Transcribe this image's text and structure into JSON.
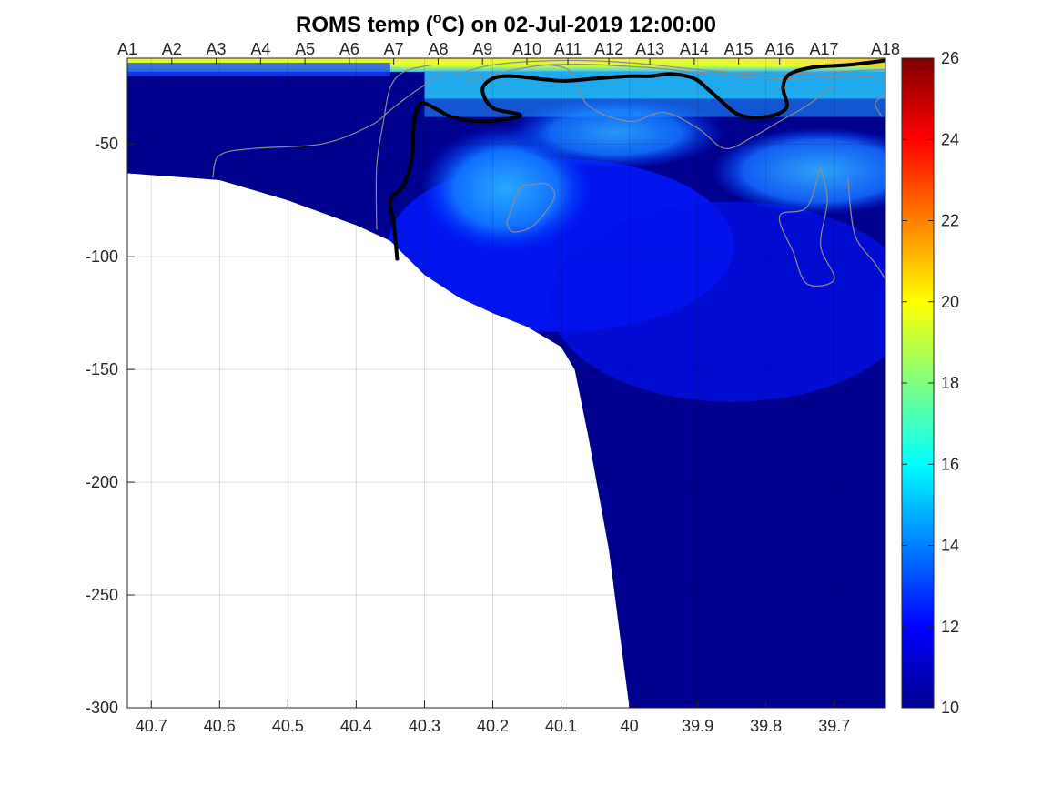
{
  "chart_data": {
    "type": "heatmap",
    "title_main": "ROMS temp (",
    "title_unit_sup": "o",
    "title_unit": "C) on 02-Jul-2019 12:00:00",
    "xlabel": "",
    "ylabel": "",
    "x_reversed": true,
    "xlim": [
      39.625,
      40.735
    ],
    "ylim": [
      -300,
      -12
    ],
    "x_ticks": [
      "40.7",
      "40.6",
      "40.5",
      "40.4",
      "40.3",
      "40.2",
      "40.1",
      "40",
      "39.9",
      "39.8",
      "39.7"
    ],
    "x_tick_values": [
      40.7,
      40.6,
      40.5,
      40.4,
      40.3,
      40.2,
      40.1,
      40.0,
      39.9,
      39.8,
      39.7
    ],
    "y_ticks": [
      "-50",
      "-100",
      "-150",
      "-200",
      "-250",
      "-300"
    ],
    "y_tick_values": [
      -50,
      -100,
      -150,
      -200,
      -250,
      -300
    ],
    "stations": [
      {
        "label": "A1",
        "x": 40.735
      },
      {
        "label": "A2",
        "x": 40.67
      },
      {
        "label": "A3",
        "x": 40.605
      },
      {
        "label": "A4",
        "x": 40.54
      },
      {
        "label": "A5",
        "x": 40.475
      },
      {
        "label": "A6",
        "x": 40.41
      },
      {
        "label": "A7",
        "x": 40.345
      },
      {
        "label": "A8",
        "x": 40.28
      },
      {
        "label": "A9",
        "x": 40.215
      },
      {
        "label": "A10",
        "x": 40.15
      },
      {
        "label": "A11",
        "x": 40.09
      },
      {
        "label": "A12",
        "x": 40.03
      },
      {
        "label": "A13",
        "x": 39.97
      },
      {
        "label": "A14",
        "x": 39.905
      },
      {
        "label": "A15",
        "x": 39.84
      },
      {
        "label": "A16",
        "x": 39.78
      },
      {
        "label": "A17",
        "x": 39.715
      },
      {
        "label": "A18",
        "x": 39.625
      }
    ],
    "colorbar": {
      "range": [
        10,
        26
      ],
      "ticks": [
        "10",
        "12",
        "14",
        "16",
        "18",
        "20",
        "22",
        "24",
        "26"
      ],
      "tick_values": [
        10,
        12,
        14,
        16,
        18,
        20,
        22,
        24,
        26
      ],
      "colormap": "jet"
    },
    "bathymetry": [
      {
        "x": 40.735,
        "depth": -63
      },
      {
        "x": 40.6,
        "depth": -66
      },
      {
        "x": 40.5,
        "depth": -75
      },
      {
        "x": 40.4,
        "depth": -86
      },
      {
        "x": 40.35,
        "depth": -93
      },
      {
        "x": 40.3,
        "depth": -108
      },
      {
        "x": 40.25,
        "depth": -118
      },
      {
        "x": 40.2,
        "depth": -125
      },
      {
        "x": 40.15,
        "depth": -131
      },
      {
        "x": 40.1,
        "depth": -140
      },
      {
        "x": 40.08,
        "depth": -150
      },
      {
        "x": 40.06,
        "depth": -180
      },
      {
        "x": 40.03,
        "depth": -230
      },
      {
        "x": 40.0,
        "depth": -300
      }
    ],
    "temperature_field": {
      "surface_layer": {
        "depth_to": -18,
        "temp_range": [
          19,
          21.5
        ]
      },
      "thermocline_band": {
        "depth_range": [
          -18,
          -30
        ],
        "temp_range": [
          14,
          17
        ]
      },
      "cold_water_west_of_40.3": {
        "temp": 10.5
      },
      "intrusion_core_x_range": [
        39.95,
        40.3
      ],
      "deep_water": {
        "depth_below": -130,
        "temp": 10.5
      }
    },
    "contour_thick": {
      "segments": [
        [
          [
            40.34,
            -101
          ],
          [
            40.345,
            -85
          ],
          [
            40.35,
            -75
          ],
          [
            40.33,
            -68
          ],
          [
            40.318,
            -55
          ],
          [
            40.315,
            -40
          ],
          [
            40.305,
            -32
          ],
          [
            40.28,
            -35
          ],
          [
            40.26,
            -38
          ],
          [
            40.22,
            -40
          ],
          [
            40.18,
            -39
          ],
          [
            40.16,
            -37
          ],
          [
            40.2,
            -34
          ],
          [
            40.215,
            -26
          ],
          [
            40.2,
            -21
          ],
          [
            40.17,
            -20
          ],
          [
            40.1,
            -22
          ],
          [
            40.05,
            -21
          ],
          [
            40.0,
            -20
          ],
          [
            39.97,
            -20
          ],
          [
            39.94,
            -19
          ],
          [
            39.905,
            -21
          ],
          [
            39.88,
            -27
          ],
          [
            39.84,
            -37
          ],
          [
            39.8,
            -38
          ],
          [
            39.77,
            -34
          ],
          [
            39.775,
            -25
          ],
          [
            39.765,
            -19
          ],
          [
            39.73,
            -16
          ],
          [
            39.68,
            -15
          ],
          [
            39.625,
            -13
          ]
        ]
      ]
    },
    "contours_thin": [
      [
        [
          40.61,
          -65
        ],
        [
          40.6,
          -55
        ],
        [
          40.55,
          -52
        ],
        [
          40.45,
          -50
        ],
        [
          40.38,
          -42
        ],
        [
          40.35,
          -35
        ],
        [
          40.32,
          -28
        ],
        [
          40.29,
          -22
        ],
        [
          40.27,
          -18
        ]
      ],
      [
        [
          40.37,
          -88
        ],
        [
          40.37,
          -60
        ],
        [
          40.36,
          -40
        ],
        [
          40.35,
          -25
        ],
        [
          40.33,
          -18
        ],
        [
          40.29,
          -15
        ]
      ],
      [
        [
          40.18,
          -85
        ],
        [
          40.16,
          -70
        ],
        [
          40.14,
          -68
        ],
        [
          40.12,
          -68
        ],
        [
          40.11,
          -74
        ],
        [
          40.14,
          -86
        ],
        [
          40.17,
          -89
        ],
        [
          40.18,
          -85
        ]
      ],
      [
        [
          40.15,
          -15
        ],
        [
          40.09,
          -17
        ],
        [
          40.06,
          -33
        ],
        [
          40.0,
          -40
        ],
        [
          39.95,
          -36
        ],
        [
          39.9,
          -43
        ],
        [
          39.86,
          -52
        ],
        [
          39.82,
          -47
        ],
        [
          39.78,
          -40
        ],
        [
          39.74,
          -33
        ],
        [
          39.7,
          -24
        ]
      ],
      [
        [
          39.72,
          -60
        ],
        [
          39.71,
          -75
        ],
        [
          39.72,
          -95
        ],
        [
          39.7,
          -110
        ],
        [
          39.74,
          -112
        ],
        [
          39.76,
          -98
        ],
        [
          39.78,
          -82
        ],
        [
          39.74,
          -78
        ],
        [
          39.72,
          -60
        ]
      ],
      [
        [
          39.68,
          -65
        ],
        [
          39.67,
          -90
        ],
        [
          39.64,
          -103
        ],
        [
          39.625,
          -110
        ]
      ],
      [
        [
          39.625,
          -28
        ],
        [
          39.64,
          -32
        ],
        [
          39.63,
          -38
        ]
      ],
      [
        [
          40.26,
          -20
        ],
        [
          40.2,
          -15
        ],
        [
          40.1,
          -13
        ],
        [
          40.0,
          -14
        ],
        [
          39.9,
          -17
        ],
        [
          39.8,
          -19
        ],
        [
          39.7,
          -18
        ],
        [
          39.625,
          -17
        ]
      ],
      [
        [
          40.24,
          -22
        ],
        [
          40.12,
          -15
        ],
        [
          39.98,
          -16
        ],
        [
          39.88,
          -19
        ],
        [
          39.78,
          -21
        ],
        [
          39.68,
          -20
        ],
        [
          39.625,
          -21
        ]
      ]
    ]
  }
}
